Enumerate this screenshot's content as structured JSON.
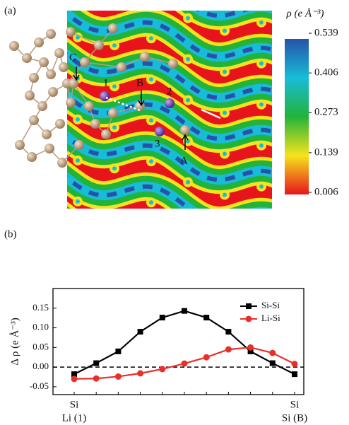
{
  "chart_data": [
    {
      "type": "heatmap",
      "panel_label": "(a)",
      "colorbar_title": "ρ (e Å⁻³)",
      "clim": [
        0.006,
        0.539
      ],
      "colorbar_ticks": [
        0.539,
        0.406,
        0.273,
        0.139,
        0.006
      ],
      "colormap": [
        "#e8141c",
        "#f5e41c",
        "#22b33a",
        "#18bcd8",
        "#2652a8"
      ],
      "annotations": [
        "1",
        "2",
        "3",
        "A",
        "B",
        "C"
      ]
    },
    {
      "type": "line",
      "panel_label": "(b)",
      "y_label": "Δ ρ (e Å⁻³)",
      "categories": [
        "Si",
        null,
        null,
        null,
        null,
        null,
        null,
        null,
        null,
        null,
        "Si"
      ],
      "category_sublabels": [
        "Li (1)",
        null,
        null,
        null,
        null,
        null,
        null,
        null,
        null,
        null,
        "Si (B)"
      ],
      "sublabel_color": "#e8302a",
      "series": [
        {
          "name": "Si-Si",
          "color": "#000000",
          "marker": "square",
          "values": [
            -0.018,
            0.01,
            0.04,
            0.09,
            0.126,
            0.143,
            0.126,
            0.09,
            0.04,
            0.01,
            -0.018
          ]
        },
        {
          "name": "Li-Si",
          "color": "#e8302a",
          "marker": "circle",
          "values": [
            -0.03,
            -0.029,
            -0.024,
            -0.016,
            -0.005,
            0.009,
            0.025,
            0.045,
            0.05,
            0.036,
            0.008
          ]
        }
      ],
      "ylim": [
        -0.07,
        0.2
      ],
      "yticks": [
        {
          "value": -0.05,
          "label": "-0.05"
        },
        {
          "value": 0,
          "label": "0.00"
        },
        {
          "value": 0.05,
          "label": "0.05"
        },
        {
          "value": 0.1,
          "label": "0.10"
        },
        {
          "value": 0.15,
          "label": "0.15"
        }
      ],
      "reference_line": 0,
      "legend": "upper right"
    }
  ]
}
